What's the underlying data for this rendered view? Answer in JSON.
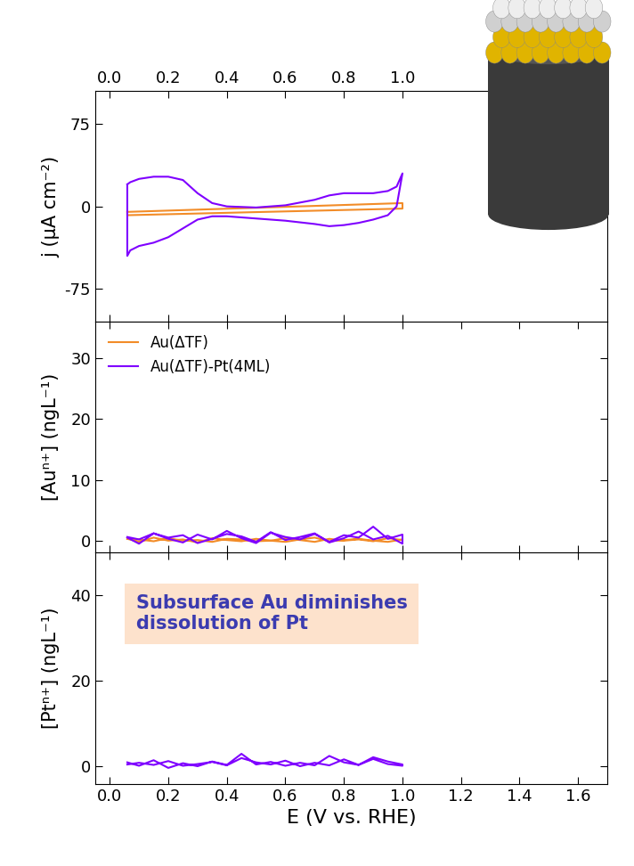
{
  "chart_data": [
    {
      "type": "line",
      "y_label": "j (μA cm⁻²)",
      "xlim": [
        -0.05,
        1.7
      ],
      "xticks": [
        {
          "value": 0,
          "label": "0.0"
        },
        {
          "value": 0.2,
          "label": "0.2"
        },
        {
          "value": 0.4,
          "label": "0.4"
        },
        {
          "value": 0.6,
          "label": "0.6"
        },
        {
          "value": 0.8,
          "label": "0.8"
        },
        {
          "value": 1.0,
          "label": "1.0"
        }
      ],
      "ylim": [
        -105,
        105
      ],
      "yticks": [
        -75,
        0,
        75
      ],
      "series": [
        {
          "name": "Au(ΔTF)",
          "color": "#f28c28",
          "x": [
            0.06,
            1.0,
            1.0,
            0.06,
            0.06
          ],
          "values": [
            -5,
            3,
            -2,
            -8,
            -5
          ]
        },
        {
          "name": "Au(ΔTF)-Pt(4ML)",
          "color": "#7f00ff",
          "x": [
            0.06,
            0.07,
            0.1,
            0.15,
            0.2,
            0.25,
            0.3,
            0.35,
            0.4,
            0.5,
            0.6,
            0.7,
            0.75,
            0.8,
            0.85,
            0.9,
            0.95,
            0.98,
            1.0,
            1.0,
            0.98,
            0.95,
            0.9,
            0.85,
            0.8,
            0.75,
            0.7,
            0.6,
            0.5,
            0.4,
            0.35,
            0.3,
            0.25,
            0.2,
            0.15,
            0.1,
            0.07,
            0.06,
            0.06
          ],
          "values": [
            20,
            22,
            25,
            27,
            27,
            24,
            12,
            3,
            0,
            -1,
            1,
            6,
            10,
            12,
            12,
            12,
            14,
            18,
            30,
            30,
            0,
            -8,
            -12,
            -15,
            -17,
            -18,
            -16,
            -13,
            -11,
            -9,
            -9,
            -12,
            -20,
            -28,
            -33,
            -36,
            -40,
            -45,
            20
          ]
        }
      ]
    },
    {
      "type": "line",
      "y_label": "[Auⁿ⁺] (ngL⁻¹)",
      "xlim": [
        -0.05,
        1.7
      ],
      "xticks": [
        0,
        0.2,
        0.4,
        0.6,
        0.8,
        1.0,
        1.2,
        1.4,
        1.6
      ],
      "tick_labels": "y",
      "ylim": [
        -2,
        36
      ],
      "yticks": [
        0,
        10,
        20,
        30
      ],
      "legend": "upper left",
      "series": [
        {
          "name": "Au(ΔTF)",
          "color": "#f28c28",
          "x": [
            0.06,
            0.1,
            0.15,
            0.2,
            0.25,
            0.3,
            0.35,
            0.4,
            0.45,
            0.5,
            0.55,
            0.6,
            0.65,
            0.7,
            0.75,
            0.8,
            0.85,
            0.9,
            0.95,
            1.0,
            1.0,
            0.95,
            0.9,
            0.85,
            0.8,
            0.75,
            0.7,
            0.65,
            0.6,
            0.55,
            0.5,
            0.45,
            0.4,
            0.35,
            0.3,
            0.25,
            0.2,
            0.15,
            0.1,
            0.06
          ],
          "values": [
            0.3,
            -0.2,
            0.5,
            0,
            0.2,
            -0.3,
            0.4,
            0.1,
            -0.1,
            0.3,
            0,
            -0.2,
            0.2,
            0.5,
            -0.1,
            0.1,
            0.3,
            0,
            -0.2,
            0.2,
            0.1,
            0.4,
            -0.1,
            0.2,
            0,
            0.3,
            -0.2,
            0.1,
            0.4,
            0,
            -0.1,
            0.2,
            0.3,
            -0.2,
            0.1,
            0,
            0.4,
            -0.1,
            0.2,
            0.3
          ]
        },
        {
          "name": "Au(ΔTF)-Pt(4ML)",
          "color": "#7f00ff",
          "x": [
            0.06,
            0.1,
            0.15,
            0.2,
            0.25,
            0.3,
            0.35,
            0.4,
            0.45,
            0.5,
            0.55,
            0.6,
            0.65,
            0.7,
            0.75,
            0.8,
            0.85,
            0.9,
            0.95,
            1.0,
            1.0,
            0.95,
            0.9,
            0.85,
            0.8,
            0.75,
            0.7,
            0.65,
            0.6,
            0.55,
            0.5,
            0.45,
            0.4,
            0.35,
            0.3,
            0.25,
            0.2,
            0.15,
            0.1,
            0.06
          ],
          "values": [
            0.5,
            -0.5,
            1.2,
            0.3,
            -0.3,
            1.0,
            0.2,
            1.6,
            0.4,
            -0.4,
            1.3,
            0.6,
            0.2,
            1.1,
            -0.2,
            0.9,
            0.5,
            2.3,
            0.3,
            1.0,
            -0.5,
            0.8,
            0.2,
            1.5,
            0.4,
            -0.3,
            1.2,
            0.6,
            0.1,
            1.4,
            -0.2,
            0.7,
            1.1,
            0.3,
            -0.4,
            0.9,
            0.5,
            1.2,
            0.2,
            0.6
          ]
        }
      ]
    },
    {
      "type": "line",
      "y_label": "[Ptⁿ⁺] (ngL⁻¹)",
      "x_label": "E (V vs. RHE)",
      "annotation": "Subsurface Au diminishes\ndissolution of Pt",
      "xlim": [
        -0.05,
        1.7
      ],
      "xticks": [
        {
          "value": 0,
          "label": "0.0"
        },
        {
          "value": 0.2,
          "label": "0.2"
        },
        {
          "value": 0.4,
          "label": "0.4"
        },
        {
          "value": 0.6,
          "label": "0.6"
        },
        {
          "value": 0.8,
          "label": "0.8"
        },
        {
          "value": 1.0,
          "label": "1.0"
        },
        {
          "value": 1.2,
          "label": "1.2"
        },
        {
          "value": 1.4,
          "label": "1.4"
        },
        {
          "value": 1.6,
          "label": "1.6"
        }
      ],
      "ylim": [
        -4,
        50
      ],
      "yticks": [
        0,
        20,
        40
      ],
      "series": [
        {
          "name": "Au(ΔTF)-Pt(4ML)",
          "color": "#7f00ff",
          "x": [
            0.06,
            0.1,
            0.15,
            0.2,
            0.25,
            0.3,
            0.35,
            0.4,
            0.45,
            0.5,
            0.55,
            0.6,
            0.65,
            0.7,
            0.75,
            0.8,
            0.85,
            0.9,
            0.95,
            1.0,
            1.0,
            0.95,
            0.9,
            0.85,
            0.8,
            0.75,
            0.7,
            0.65,
            0.6,
            0.55,
            0.5,
            0.45,
            0.4,
            0.35,
            0.3,
            0.25,
            0.2,
            0.15,
            0.1,
            0.06
          ],
          "values": [
            1.0,
            0.2,
            1.5,
            -0.3,
            0.8,
            0.1,
            1.2,
            0.4,
            3.0,
            0.5,
            1.1,
            0.2,
            0.9,
            0.3,
            2.5,
            1.0,
            0.4,
            1.8,
            0.6,
            0.2,
            0.5,
            1.2,
            2.2,
            0.4,
            1.7,
            0.3,
            0.9,
            0.1,
            1.4,
            0.5,
            1.0,
            2.0,
            0.3,
            1.1,
            0.6,
            0.2,
            1.3,
            0.4,
            0.9,
            0.5
          ]
        }
      ]
    }
  ]
}
